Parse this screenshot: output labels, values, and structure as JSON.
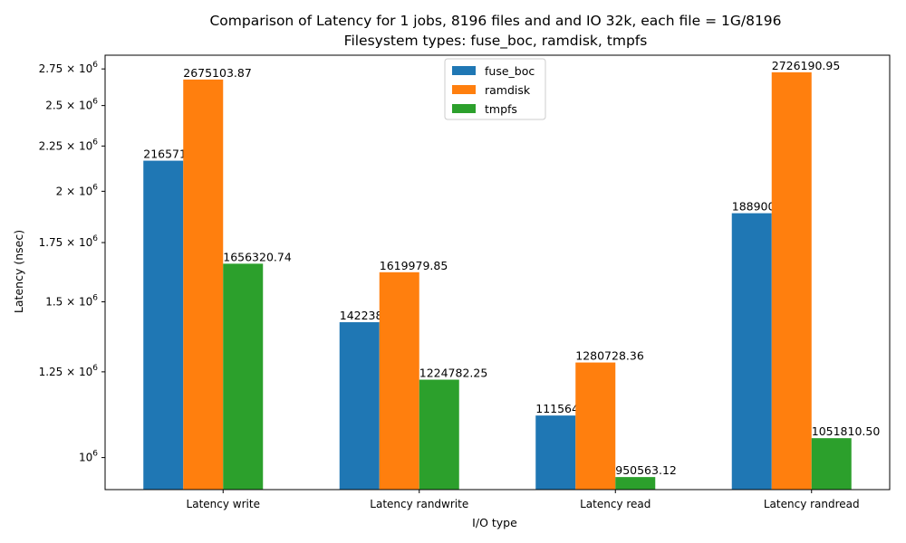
{
  "chart_data": {
    "type": "bar",
    "title": "Comparison of Latency for 1 jobs, 8196 files and  and IO 32k, each file = 1G/8196",
    "subtitle": "Filesystem types: fuse_boc, ramdisk, tmpfs",
    "xlabel": "I/O type",
    "ylabel": "Latency (nsec)",
    "yscale": "log",
    "ylim": [
      920000,
      2850000
    ],
    "grid": false,
    "legend_position": "top-center",
    "categories": [
      "Latency write",
      "Latency randwrite",
      "Latency read",
      "Latency randread"
    ],
    "yticks": [
      {
        "value": 1000000,
        "label": "10^6"
      },
      {
        "value": 1250000,
        "label": "1.25 × 10^6"
      },
      {
        "value": 1500000,
        "label": "1.5 × 10^6"
      },
      {
        "value": 1750000,
        "label": "1.75 × 10^6"
      },
      {
        "value": 2000000,
        "label": "2 × 10^6"
      },
      {
        "value": 2250000,
        "label": "2.25 × 10^6"
      },
      {
        "value": 2500000,
        "label": "2.5 × 10^6"
      },
      {
        "value": 2750000,
        "label": "2.75 × 10^6"
      }
    ],
    "series": [
      {
        "name": "fuse_boc",
        "color": "#1f77b4",
        "values": [
          2165712.3,
          1422381.05,
          1115645.74,
          1889000.73
        ],
        "labels": [
          "2165712.30",
          "1422381.05",
          "1115645.74",
          "1889000.73"
        ]
      },
      {
        "name": "ramdisk",
        "color": "#ff7f0e",
        "values": [
          2675103.87,
          1619979.85,
          1280728.36,
          2726190.95
        ],
        "labels": [
          "2675103.87",
          "1619979.85",
          "1280728.36",
          "2726190.95"
        ]
      },
      {
        "name": "tmpfs",
        "color": "#2ca02c",
        "values": [
          1656320.74,
          1224782.25,
          950563.12,
          1051810.5
        ],
        "labels": [
          "1656320.74",
          "1224782.25",
          "950563.12",
          "1051810.50"
        ]
      }
    ]
  }
}
